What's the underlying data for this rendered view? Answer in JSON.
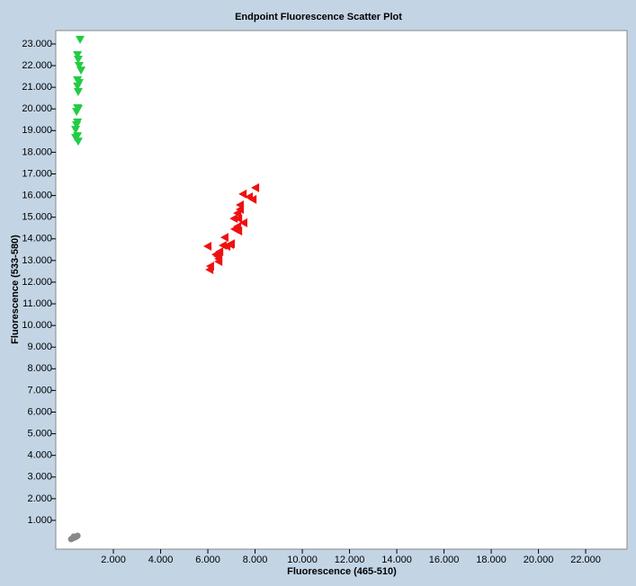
{
  "chart_data": {
    "type": "scatter",
    "title": "Endpoint Fluorescence Scatter Plot",
    "x_label": "Fluorescence (465-510)",
    "y_label": "Fluorescence (533-580)",
    "xlim": [
      -440,
      23750
    ],
    "ylim": [
      -330,
      23620
    ],
    "xticks": [
      {
        "value": 2000,
        "label": "2.000"
      },
      {
        "value": 4000,
        "label": "4.000"
      },
      {
        "value": 6000,
        "label": "6.000"
      },
      {
        "value": 8000,
        "label": "8.000"
      },
      {
        "value": 10000,
        "label": "10.000"
      },
      {
        "value": 12000,
        "label": "12.000"
      },
      {
        "value": 14000,
        "label": "14.000"
      },
      {
        "value": 16000,
        "label": "16.000"
      },
      {
        "value": 18000,
        "label": "18.000"
      },
      {
        "value": 20000,
        "label": "20.000"
      },
      {
        "value": 22000,
        "label": "22.000"
      }
    ],
    "yticks": [
      {
        "value": 1000,
        "label": "1.000"
      },
      {
        "value": 2000,
        "label": "2.000"
      },
      {
        "value": 3000,
        "label": "3.000"
      },
      {
        "value": 4000,
        "label": "4.000"
      },
      {
        "value": 5000,
        "label": "5.000"
      },
      {
        "value": 6000,
        "label": "6.000"
      },
      {
        "value": 7000,
        "label": "7.000"
      },
      {
        "value": 8000,
        "label": "8.000"
      },
      {
        "value": 9000,
        "label": "9.000"
      },
      {
        "value": 10000,
        "label": "10.000"
      },
      {
        "value": 11000,
        "label": "11.000"
      },
      {
        "value": 12000,
        "label": "12.000"
      },
      {
        "value": 13000,
        "label": "13.000"
      },
      {
        "value": 14000,
        "label": "14.000"
      },
      {
        "value": 15000,
        "label": "15.000"
      },
      {
        "value": 16000,
        "label": "16.000"
      },
      {
        "value": 17000,
        "label": "17.000"
      },
      {
        "value": 18000,
        "label": "18.000"
      },
      {
        "value": 19000,
        "label": "19.000"
      },
      {
        "value": 20000,
        "label": "20.000"
      },
      {
        "value": 21000,
        "label": "21.000"
      },
      {
        "value": 22000,
        "label": "22.000"
      },
      {
        "value": 23000,
        "label": "23.000"
      }
    ],
    "series": [
      {
        "color": "#22cc44",
        "marker": "triangle-down",
        "x": [
          590,
          480,
          510,
          550,
          630,
          480,
          550,
          480,
          510,
          480,
          510,
          440,
          480,
          440,
          400,
          400,
          480,
          510
        ],
        "values": [
          23210,
          22500,
          22290,
          22000,
          21790,
          21340,
          21210,
          21050,
          20800,
          20050,
          20010,
          19880,
          19390,
          19260,
          19050,
          18680,
          18760,
          18510
        ]
      },
      {
        "color": "#ee1111",
        "marker": "triangle-left",
        "x": [
          8020,
          7490,
          7750,
          7910,
          7370,
          7370,
          7260,
          7300,
          7110,
          7520,
          7260,
          7140,
          7300,
          6720,
          6950,
          6800,
          6650,
          6000,
          6500,
          6420,
          6340,
          6460,
          6110,
          6080,
          6460,
          6990
        ],
        "values": [
          16360,
          16070,
          15940,
          15820,
          15570,
          15360,
          15190,
          14940,
          14940,
          14740,
          14570,
          14450,
          14360,
          14070,
          13740,
          13660,
          13700,
          13660,
          13410,
          13200,
          13280,
          12950,
          12740,
          12580,
          13080,
          13780
        ]
      },
      {
        "color": "#888888",
        "marker": "circle",
        "x": [
          210,
          290,
          360,
          440,
          480,
          320
        ],
        "values": [
          130,
          170,
          210,
          250,
          290,
          250
        ]
      }
    ]
  }
}
